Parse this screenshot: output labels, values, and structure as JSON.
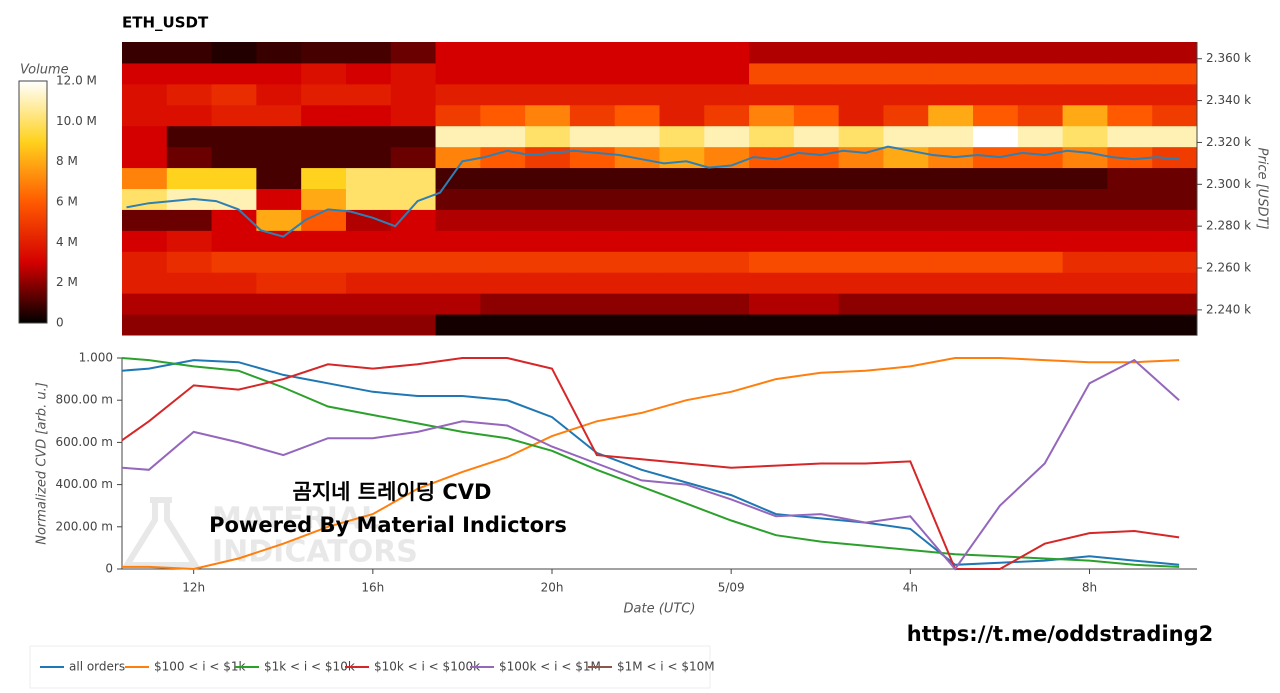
{
  "chart_data": [
    {
      "type": "heatmap",
      "title": "ETH_USDT",
      "y_label": "Price [USDT]",
      "colorbar_title": "Volume",
      "colorscale": [
        "#000000",
        "#d40000",
        "#ff5a00",
        "#ffd21e",
        "#ffffff"
      ],
      "clim": [
        0,
        12
      ],
      "cticks": [
        {
          "value": 0,
          "label": "0"
        },
        {
          "value": 2,
          "label": "2 M"
        },
        {
          "value": 4,
          "label": "4 M"
        },
        {
          "value": 6,
          "label": "6 M"
        },
        {
          "value": 8,
          "label": "8 M"
        },
        {
          "value": 10,
          "label": "10.0 M"
        },
        {
          "value": 12,
          "label": "12.0 M"
        }
      ],
      "xlim": [
        10.4,
        34.4
      ],
      "ylim": [
        2228,
        2368
      ],
      "yticks": [
        {
          "value": 2240,
          "label": "2.240 k"
        },
        {
          "value": 2260,
          "label": "2.260 k"
        },
        {
          "value": 2280,
          "label": "2.280 k"
        },
        {
          "value": 2300,
          "label": "2.300 k"
        },
        {
          "value": 2320,
          "label": "2.320 k"
        },
        {
          "value": 2340,
          "label": "2.340 k"
        },
        {
          "value": 2360,
          "label": "2.360 k"
        }
      ],
      "xbins": [
        10.4,
        11.4,
        12.4,
        13.4,
        14.4,
        15.4,
        16.4,
        17.4,
        18.4,
        19.4,
        20.4,
        21.4,
        22.4,
        23.4,
        24.4,
        25.4,
        26.4,
        27.4,
        28.4,
        29.4,
        30.4,
        31.4,
        32.4,
        33.4,
        34.4
      ],
      "ybins": [
        2228,
        2238,
        2248,
        2258,
        2268,
        2278,
        2288,
        2298,
        2308,
        2318,
        2328,
        2338,
        2348,
        2358,
        2368
      ],
      "z": [
        [
          2,
          2,
          2,
          2,
          2,
          2,
          2,
          0.3,
          0.3,
          0.3,
          0.3,
          0.3,
          0.3,
          0.3,
          0.3,
          0.3,
          0.3,
          0.3,
          0.3,
          0.3,
          0.3,
          0.3,
          0.3,
          0.3
        ],
        [
          2.5,
          2.5,
          2.5,
          2.5,
          2.5,
          2.5,
          2.5,
          2.5,
          2,
          2,
          2,
          2,
          2,
          2,
          2.5,
          2.5,
          2,
          2,
          2,
          2,
          2,
          2,
          2,
          2
        ],
        [
          4,
          4,
          4,
          4.5,
          4.5,
          4,
          4,
          4,
          4,
          4,
          4,
          4,
          4,
          4,
          4,
          4,
          4,
          4,
          4,
          4,
          4,
          4,
          4,
          4
        ],
        [
          4,
          4.5,
          5,
          5,
          5,
          5,
          5,
          5,
          5,
          5,
          5,
          5,
          5,
          5,
          5.5,
          5.5,
          5.5,
          5.5,
          5.5,
          5.5,
          5.5,
          4.5,
          4.5,
          4.5
        ],
        [
          3,
          3.5,
          3,
          3,
          3,
          3,
          3,
          3,
          3,
          3,
          3,
          3,
          3,
          3,
          3,
          3,
          3,
          3,
          3,
          3,
          3,
          3,
          3,
          3
        ],
        [
          1.5,
          1.5,
          3,
          8,
          6,
          2.5,
          3,
          2.5,
          2.5,
          2.5,
          2.5,
          2.5,
          2.5,
          2.5,
          2.5,
          2.5,
          2.5,
          2.5,
          2.5,
          2.5,
          2.5,
          2.5,
          2.5,
          2.5
        ],
        [
          10,
          11,
          11,
          3,
          8,
          10,
          10,
          1.5,
          1.5,
          1.5,
          1.5,
          1.5,
          1.5,
          1.5,
          1.5,
          1.5,
          1.5,
          1.5,
          1.5,
          1.5,
          1.5,
          1.5,
          1.5,
          1.5
        ],
        [
          7,
          9,
          9,
          1,
          9,
          10,
          10,
          1,
          1,
          1,
          1,
          1,
          1,
          1,
          1,
          1,
          1,
          1,
          1,
          1,
          1,
          1,
          1.5,
          1.5
        ],
        [
          3,
          1.5,
          1,
          1,
          1,
          1,
          1.5,
          7,
          6,
          5,
          6,
          7,
          8,
          7,
          6,
          6,
          7,
          8,
          7,
          6,
          6,
          7,
          6,
          5
        ],
        [
          3,
          1,
          1,
          1,
          1,
          1,
          1,
          11,
          11,
          10,
          11,
          11,
          10,
          11,
          10,
          11,
          10,
          11,
          11,
          12,
          11,
          10,
          11,
          11
        ],
        [
          3.5,
          3.5,
          4,
          4,
          3,
          3,
          3.5,
          5,
          6,
          7,
          5,
          6,
          4,
          5,
          7,
          6,
          4,
          5,
          8,
          6,
          5,
          8,
          6,
          5
        ],
        [
          3.5,
          4,
          4.5,
          3.5,
          4,
          4,
          3.5,
          4,
          4,
          4,
          4,
          4,
          4,
          4,
          4,
          4,
          4,
          4,
          4,
          4,
          4,
          4,
          4,
          4
        ],
        [
          3,
          3,
          3,
          3,
          3.5,
          3,
          3.5,
          3,
          3,
          3,
          3,
          3,
          3,
          3,
          5.5,
          5.5,
          5.5,
          5.5,
          5.5,
          5.5,
          5.5,
          5.5,
          5.5,
          5.5
        ],
        [
          0.8,
          0.8,
          0.5,
          0.8,
          1,
          1,
          1.5,
          3,
          3,
          3,
          3,
          3,
          3,
          3,
          2.5,
          2.5,
          2.5,
          2.5,
          2.5,
          2.5,
          2.5,
          2.5,
          2.5,
          2.5
        ]
      ],
      "price": {
        "color": "#2f7fb5",
        "x": [
          10.5,
          11,
          11.5,
          12,
          12.5,
          13,
          13.5,
          14,
          14.5,
          15,
          15.5,
          16,
          16.5,
          17,
          17.5,
          18,
          18.5,
          19,
          19.5,
          20,
          20.5,
          21,
          21.5,
          22,
          22.5,
          23,
          23.5,
          24,
          24.5,
          25,
          25.5,
          26,
          26.5,
          27,
          27.5,
          28,
          28.5,
          29,
          29.5,
          30,
          30.5,
          31,
          31.5,
          32,
          32.5,
          33,
          33.5,
          34
        ],
        "values": [
          2289,
          2291,
          2292,
          2293,
          2292,
          2288,
          2278,
          2275,
          2283,
          2288,
          2287,
          2284,
          2280,
          2292,
          2296,
          2311,
          2313,
          2316,
          2314,
          2315,
          2316,
          2315,
          2314,
          2312,
          2310,
          2311,
          2308,
          2309,
          2313,
          2312,
          2315,
          2314,
          2316,
          2315,
          2318,
          2316,
          2314,
          2313,
          2314,
          2313,
          2315,
          2314,
          2316,
          2315,
          2313,
          2312,
          2313,
          2312
        ]
      }
    },
    {
      "type": "line",
      "y_label": "Normalized CVD [arb. u.]",
      "x_label": "Date (UTC)",
      "annotations": [
        "곰지네 트레이딩 CVD",
        "Powered By Material Indictors",
        "https://t.me/oddstrading2"
      ],
      "watermark": [
        "MATERIAL",
        "INDICATORS"
      ],
      "xlim": [
        10.4,
        34.4
      ],
      "ylim": [
        0,
        1
      ],
      "xticks": [
        {
          "value": 12,
          "label": "12h"
        },
        {
          "value": 16,
          "label": "16h"
        },
        {
          "value": 20,
          "label": "20h"
        },
        {
          "value": 24,
          "label": "5/09"
        },
        {
          "value": 28,
          "label": "4h"
        },
        {
          "value": 32,
          "label": "8h"
        }
      ],
      "yticks": [
        0,
        {
          "value": 0.2,
          "label": "200.00 m"
        },
        {
          "value": 0.4,
          "label": "400.00 m"
        },
        {
          "value": 0.6,
          "label": "600.00 m"
        },
        {
          "value": 0.8,
          "label": "800.00 m"
        },
        {
          "value": 1,
          "label": "1.000"
        }
      ],
      "x": [
        10.4,
        11,
        12,
        13,
        14,
        15,
        16,
        17,
        18,
        19,
        20,
        21,
        22,
        23,
        24,
        25,
        26,
        27,
        28,
        29,
        30,
        31,
        32,
        33,
        34
      ],
      "series": [
        {
          "name": "all orders",
          "color": "#1f77b4",
          "values": [
            0.94,
            0.95,
            0.99,
            0.98,
            0.92,
            0.88,
            0.84,
            0.82,
            0.82,
            0.8,
            0.72,
            0.55,
            0.47,
            0.41,
            0.35,
            0.26,
            0.24,
            0.22,
            0.19,
            0.02,
            0.03,
            0.04,
            0.06,
            0.04,
            0.02
          ]
        },
        {
          "name": "$100 < i < $1k",
          "color": "#ff7f0e",
          "values": [
            0.01,
            0.01,
            0,
            0.05,
            0.12,
            0.2,
            0.26,
            0.38,
            0.46,
            0.53,
            0.63,
            0.7,
            0.74,
            0.8,
            0.84,
            0.9,
            0.93,
            0.94,
            0.96,
            1,
            1,
            0.99,
            0.98,
            0.98,
            0.99
          ]
        },
        {
          "name": "$1k < i < $10k",
          "color": "#2ca02c",
          "values": [
            1,
            0.99,
            0.96,
            0.94,
            0.86,
            0.77,
            0.73,
            0.69,
            0.65,
            0.62,
            0.56,
            0.47,
            0.39,
            0.31,
            0.23,
            0.16,
            0.13,
            0.11,
            0.09,
            0.07,
            0.06,
            0.05,
            0.04,
            0.02,
            0.01
          ]
        },
        {
          "name": "$10k < i < $100k",
          "color": "#d62728",
          "values": [
            0.61,
            0.7,
            0.87,
            0.85,
            0.9,
            0.97,
            0.95,
            0.97,
            1,
            1,
            0.95,
            0.54,
            0.52,
            0.5,
            0.48,
            0.49,
            0.5,
            0.5,
            0.51,
            0,
            0,
            0.12,
            0.17,
            0.18,
            0.15
          ]
        },
        {
          "name": "$100k < i < $1M",
          "color": "#9467bd",
          "values": [
            0.48,
            0.47,
            0.65,
            0.6,
            0.54,
            0.62,
            0.62,
            0.65,
            0.7,
            0.68,
            0.58,
            0.5,
            0.42,
            0.4,
            0.33,
            0.25,
            0.26,
            0.22,
            0.25,
            0,
            0.3,
            0.5,
            0.88,
            0.99,
            0.8
          ]
        },
        {
          "name": "$1M < i < $10M",
          "color": "#8c564b",
          "values": [
            null,
            null,
            null,
            null,
            null,
            null,
            null,
            null,
            null,
            null,
            null,
            null,
            null,
            null,
            null,
            null,
            null,
            null,
            null,
            null,
            null,
            null,
            null,
            null,
            null
          ]
        }
      ]
    }
  ]
}
